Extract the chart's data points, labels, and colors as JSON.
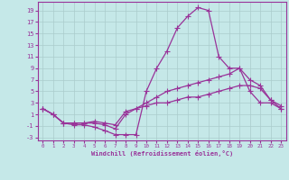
{
  "xlabel": "Windchill (Refroidissement éolien,°C)",
  "background_color": "#c5e8e8",
  "grid_color": "#aacccc",
  "line_color": "#993399",
  "x_data": [
    0,
    1,
    2,
    3,
    4,
    5,
    6,
    7,
    8,
    9,
    10,
    11,
    12,
    13,
    14,
    15,
    16,
    17,
    18,
    19,
    20,
    21,
    22,
    23
  ],
  "line1": [
    2,
    1,
    -0.5,
    -0.8,
    -0.8,
    -1.2,
    -1.8,
    -2.5,
    -2.5,
    -2.5,
    5,
    9,
    12,
    16,
    18,
    19.5,
    19,
    11,
    9,
    9,
    5,
    3,
    3,
    2
  ],
  "line2": [
    2,
    1,
    -0.5,
    -0.5,
    -0.5,
    -0.5,
    -0.8,
    -1.5,
    1,
    2,
    3,
    4,
    5,
    5.5,
    6,
    6.5,
    7,
    7.5,
    8,
    9,
    7,
    6,
    3.5,
    2
  ],
  "line3": [
    2,
    1,
    -0.5,
    -0.5,
    -0.5,
    -0.2,
    -0.5,
    -0.8,
    1.5,
    2,
    2.5,
    3,
    3,
    3.5,
    4,
    4,
    4.5,
    5,
    5.5,
    6,
    6,
    5.5,
    3.5,
    2.5
  ],
  "xlim": [
    -0.5,
    23.5
  ],
  "ylim": [
    -3.5,
    20.5
  ],
  "yticks": [
    -3,
    -1,
    1,
    3,
    5,
    7,
    9,
    11,
    13,
    15,
    17,
    19
  ],
  "xticks": [
    0,
    1,
    2,
    3,
    4,
    5,
    6,
    7,
    8,
    9,
    10,
    11,
    12,
    13,
    14,
    15,
    16,
    17,
    18,
    19,
    20,
    21,
    22,
    23
  ],
  "marker": "+",
  "markersize": 4,
  "linewidth": 0.9
}
